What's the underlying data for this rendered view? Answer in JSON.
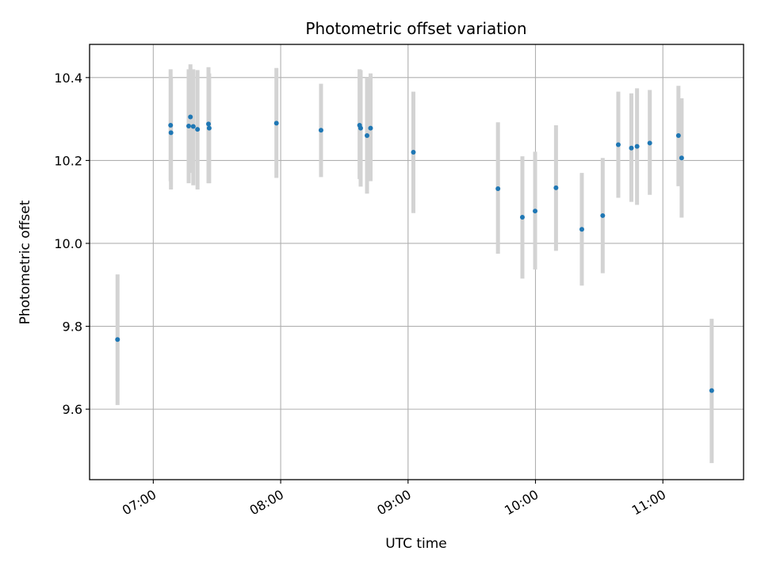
{
  "chart_data": {
    "type": "scatter",
    "title": "Photometric offset variation",
    "xlabel": "UTC time",
    "ylabel": "Photometric offset",
    "x_unit": "UTC time (HH:MM:SS)",
    "xlim": [
      "06:30:00",
      "11:38:00"
    ],
    "ylim": [
      9.43,
      10.48
    ],
    "xticks": [
      "07:00",
      "08:00",
      "09:00",
      "10:00",
      "11:00"
    ],
    "yticks": [
      "9.6",
      "9.8",
      "10.0",
      "10.2",
      "10.4"
    ],
    "grid": true,
    "point_color": "#1f77b4",
    "errorbar_color": "#d3d3d3",
    "points": [
      {
        "t": "06:43:10",
        "y": 9.768,
        "lo": 9.61,
        "hi": 9.925
      },
      {
        "t": "07:08:10",
        "y": 10.285,
        "lo": 10.15,
        "hi": 10.42
      },
      {
        "t": "07:08:20",
        "y": 10.267,
        "lo": 10.13,
        "hi": 10.4
      },
      {
        "t": "07:16:40",
        "y": 10.283,
        "lo": 10.145,
        "hi": 10.42
      },
      {
        "t": "07:17:30",
        "y": 10.305,
        "lo": 10.17,
        "hi": 10.432
      },
      {
        "t": "07:18:50",
        "y": 10.282,
        "lo": 10.14,
        "hi": 10.42
      },
      {
        "t": "07:20:50",
        "y": 10.275,
        "lo": 10.13,
        "hi": 10.418
      },
      {
        "t": "07:26:00",
        "y": 10.288,
        "lo": 10.145,
        "hi": 10.425
      },
      {
        "t": "07:26:20",
        "y": 10.278,
        "lo": 10.145,
        "hi": 10.41
      },
      {
        "t": "07:58:00",
        "y": 10.29,
        "lo": 10.158,
        "hi": 10.423
      },
      {
        "t": "08:19:00",
        "y": 10.273,
        "lo": 10.16,
        "hi": 10.385
      },
      {
        "t": "08:37:10",
        "y": 10.285,
        "lo": 10.155,
        "hi": 10.42
      },
      {
        "t": "08:37:40",
        "y": 10.278,
        "lo": 10.137,
        "hi": 10.418
      },
      {
        "t": "08:40:40",
        "y": 10.26,
        "lo": 10.12,
        "hi": 10.4
      },
      {
        "t": "08:42:20",
        "y": 10.278,
        "lo": 10.15,
        "hi": 10.41
      },
      {
        "t": "09:02:30",
        "y": 10.22,
        "lo": 10.073,
        "hi": 10.366
      },
      {
        "t": "09:42:20",
        "y": 10.132,
        "lo": 9.975,
        "hi": 10.292
      },
      {
        "t": "09:53:50",
        "y": 10.063,
        "lo": 9.915,
        "hi": 10.21
      },
      {
        "t": "09:59:50",
        "y": 10.078,
        "lo": 9.937,
        "hi": 10.221
      },
      {
        "t": "10:09:40",
        "y": 10.134,
        "lo": 9.982,
        "hi": 10.285
      },
      {
        "t": "10:21:50",
        "y": 10.034,
        "lo": 9.898,
        "hi": 10.17
      },
      {
        "t": "10:31:40",
        "y": 10.067,
        "lo": 9.928,
        "hi": 10.206
      },
      {
        "t": "10:39:00",
        "y": 10.238,
        "lo": 10.11,
        "hi": 10.366
      },
      {
        "t": "10:45:10",
        "y": 10.23,
        "lo": 10.1,
        "hi": 10.362
      },
      {
        "t": "10:47:50",
        "y": 10.234,
        "lo": 10.093,
        "hi": 10.374
      },
      {
        "t": "10:53:50",
        "y": 10.242,
        "lo": 10.117,
        "hi": 10.37
      },
      {
        "t": "11:07:20",
        "y": 10.26,
        "lo": 10.138,
        "hi": 10.38
      },
      {
        "t": "11:08:50",
        "y": 10.206,
        "lo": 10.062,
        "hi": 10.35
      },
      {
        "t": "11:23:00",
        "y": 9.645,
        "lo": 9.47,
        "hi": 9.818
      }
    ]
  }
}
